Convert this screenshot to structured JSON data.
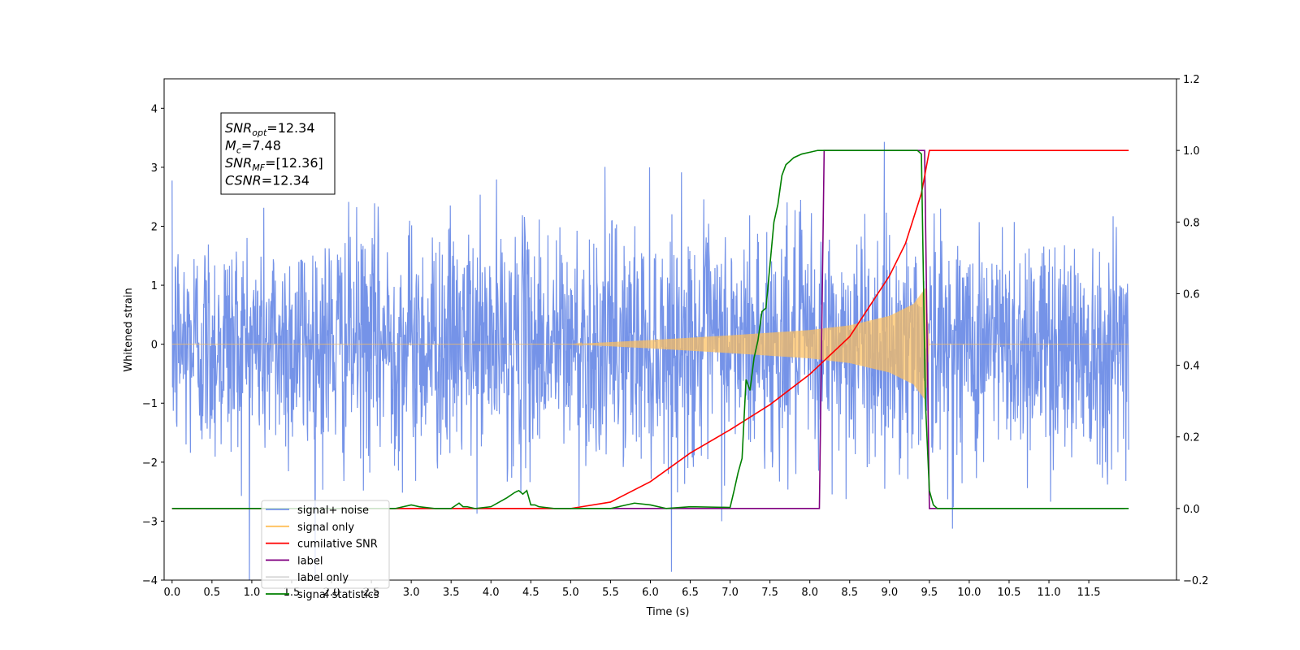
{
  "chart_data": {
    "type": "line",
    "xlabel": "Time (s)",
    "ylabel": "Whitened strain",
    "xlim": [
      -0.1,
      12.6
    ],
    "ylim": [
      -4,
      4.5
    ],
    "y2lim": [
      -0.2,
      1.2
    ],
    "x_ticks": [
      0.0,
      0.5,
      1.0,
      1.5,
      2.0,
      2.5,
      3.0,
      3.5,
      4.0,
      4.5,
      5.0,
      5.5,
      6.0,
      6.5,
      7.0,
      7.5,
      8.0,
      8.5,
      9.0,
      9.5,
      10.0,
      10.5,
      11.0,
      11.5
    ],
    "x_tick_labels": [
      "0.0",
      "0.5",
      "1.0",
      "1.5",
      "2.0",
      "2.5",
      "3.0",
      "3.5",
      "4.0",
      "4.5",
      "5.0",
      "5.5",
      "6.0",
      "6.5",
      "7.0",
      "7.5",
      "8.0",
      "8.5",
      "9.0",
      "9.5",
      "10.0",
      "10.5",
      "11.0",
      "11.5"
    ],
    "y_ticks": [
      -4,
      -3,
      -2,
      -1,
      0,
      1,
      2,
      3,
      4
    ],
    "y_tick_labels": [
      "−4",
      "−3",
      "−2",
      "−1",
      "0",
      "1",
      "2",
      "3",
      "4"
    ],
    "y2_ticks": [
      -0.2,
      0.0,
      0.2,
      0.4,
      0.6,
      0.8,
      1.0,
      1.2
    ],
    "y2_tick_labels": [
      "−0.2",
      "0.0",
      "0.2",
      "0.4",
      "0.6",
      "0.8",
      "1.0",
      "1.2"
    ],
    "grid": false,
    "legend_position": "lower-left",
    "annotation": {
      "lines": [
        {
          "main": "SNR",
          "sub": "opt",
          "rest": "=12.34"
        },
        {
          "main": "M",
          "sub": "c",
          "rest": "=7.48"
        },
        {
          "main": "SNR",
          "sub": "MF",
          "rest": "=[12.36]"
        },
        {
          "main": "CSNR",
          "sub": "",
          "rest": "=12.34"
        }
      ]
    },
    "series": [
      {
        "name": "signal+ noise",
        "axis": "left",
        "color": "#7593e8",
        "style": "noise",
        "x_range": [
          0.0,
          12.0
        ],
        "sigma": 1.0,
        "max_abs_approx": 4.1
      },
      {
        "name": "signal only",
        "axis": "left",
        "color": "#ffbf5a",
        "style": "chirp",
        "envelope": {
          "x": [
            0.0,
            5.0,
            6.0,
            7.0,
            8.0,
            8.5,
            9.0,
            9.3,
            9.45,
            9.5,
            12.0
          ],
          "y": [
            0.0,
            0.0,
            0.07,
            0.15,
            0.24,
            0.32,
            0.48,
            0.68,
            0.95,
            0.0,
            0.0
          ]
        }
      },
      {
        "name": "cumilative SNR",
        "axis": "right",
        "color": "#ff0000",
        "x": [
          0.0,
          5.0,
          5.5,
          6.0,
          6.5,
          7.0,
          7.5,
          8.0,
          8.5,
          9.0,
          9.2,
          9.4,
          9.5,
          12.0
        ],
        "y": [
          0.0,
          0.0,
          0.018,
          0.075,
          0.155,
          0.22,
          0.29,
          0.375,
          0.48,
          0.65,
          0.74,
          0.88,
          1.0,
          1.0
        ]
      },
      {
        "name": "label",
        "axis": "right",
        "color": "#800080",
        "x": [
          0.0,
          8.12,
          8.18,
          9.44,
          9.5,
          11.95
        ],
        "y": [
          0.0,
          0.0,
          1.0,
          1.0,
          0.0,
          0.0
        ]
      },
      {
        "name": "label only",
        "axis": "right",
        "color": "#d9d9d9",
        "x": [],
        "y": []
      },
      {
        "name": "signal statistics",
        "axis": "right",
        "color": "#008000",
        "x": [
          0.0,
          2.8,
          3.0,
          3.1,
          3.3,
          3.5,
          3.6,
          3.65,
          3.7,
          3.8,
          4.0,
          4.2,
          4.3,
          4.35,
          4.4,
          4.45,
          4.5,
          4.55,
          4.6,
          4.8,
          5.0,
          5.5,
          5.8,
          6.0,
          6.2,
          6.5,
          7.0,
          7.05,
          7.1,
          7.15,
          7.2,
          7.25,
          7.3,
          7.35,
          7.4,
          7.45,
          7.5,
          7.55,
          7.6,
          7.65,
          7.7,
          7.75,
          7.8,
          7.9,
          8.0,
          8.1,
          8.3,
          9.0,
          9.35,
          9.4,
          9.45,
          9.5,
          9.55,
          9.6,
          9.7,
          12.0
        ],
        "y": [
          0.0,
          0.0,
          0.01,
          0.005,
          0.0,
          0.0,
          0.015,
          0.005,
          0.005,
          0.0,
          0.005,
          0.03,
          0.045,
          0.05,
          0.04,
          0.05,
          0.01,
          0.01,
          0.005,
          0.0,
          0.0,
          0.0,
          0.015,
          0.01,
          0.0,
          0.005,
          0.003,
          0.05,
          0.1,
          0.14,
          0.36,
          0.33,
          0.42,
          0.47,
          0.55,
          0.56,
          0.68,
          0.8,
          0.85,
          0.93,
          0.96,
          0.97,
          0.98,
          0.99,
          0.995,
          1.0,
          1.0,
          1.0,
          1.0,
          0.99,
          0.3,
          0.05,
          0.01,
          0.0,
          0.0,
          0.0
        ]
      }
    ]
  }
}
